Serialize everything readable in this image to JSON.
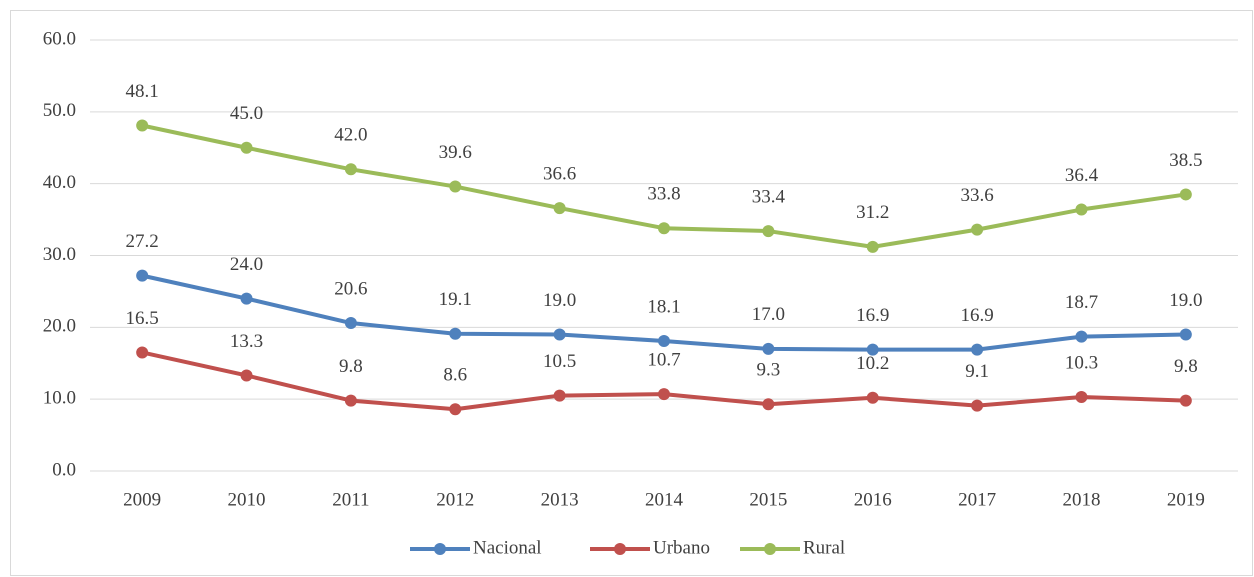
{
  "chart_data": {
    "type": "line",
    "categories": [
      "2009",
      "2010",
      "2011",
      "2012",
      "2013",
      "2014",
      "2015",
      "2016",
      "2017",
      "2018",
      "2019"
    ],
    "series": [
      {
        "name": "Nacional",
        "color": "#4f81bd",
        "values": [
          27.2,
          24.0,
          20.6,
          19.1,
          19.0,
          18.1,
          17.0,
          16.9,
          16.9,
          18.7,
          19.0
        ],
        "value_labels": [
          "27.2",
          "24.0",
          "20.6",
          "19.1",
          "19.0",
          "18.1",
          "17.0",
          "16.9",
          "16.9",
          "18.7",
          "19.0"
        ]
      },
      {
        "name": "Urbano",
        "color": "#c0504d",
        "values": [
          16.5,
          13.3,
          9.8,
          8.6,
          10.5,
          10.7,
          9.3,
          10.2,
          9.1,
          10.3,
          9.8
        ],
        "value_labels": [
          "16.5",
          "13.3",
          "9.8",
          "8.6",
          "10.5",
          "10.7",
          "9.3",
          "10.2",
          "9.1",
          "10.3",
          "9.8"
        ]
      },
      {
        "name": "Rural",
        "color": "#9bbb59",
        "values": [
          48.1,
          45.0,
          42.0,
          39.6,
          36.6,
          33.8,
          33.4,
          31.2,
          33.6,
          36.4,
          38.5
        ],
        "value_labels": [
          "48.1",
          "45.0",
          "42.0",
          "39.6",
          "36.6",
          "33.8",
          "33.4",
          "31.2",
          "33.6",
          "36.4",
          "38.5"
        ]
      }
    ],
    "ylim": [
      0,
      60
    ],
    "yticks": [
      {
        "value": 0,
        "label": "0.0"
      },
      {
        "value": 10,
        "label": "10.0"
      },
      {
        "value": 20,
        "label": "20.0"
      },
      {
        "value": 30,
        "label": "30.0"
      },
      {
        "value": 40,
        "label": "40.0"
      },
      {
        "value": 50,
        "label": "50.0"
      },
      {
        "value": 60,
        "label": "60.0"
      }
    ],
    "grid": true,
    "legend": "bottom"
  }
}
